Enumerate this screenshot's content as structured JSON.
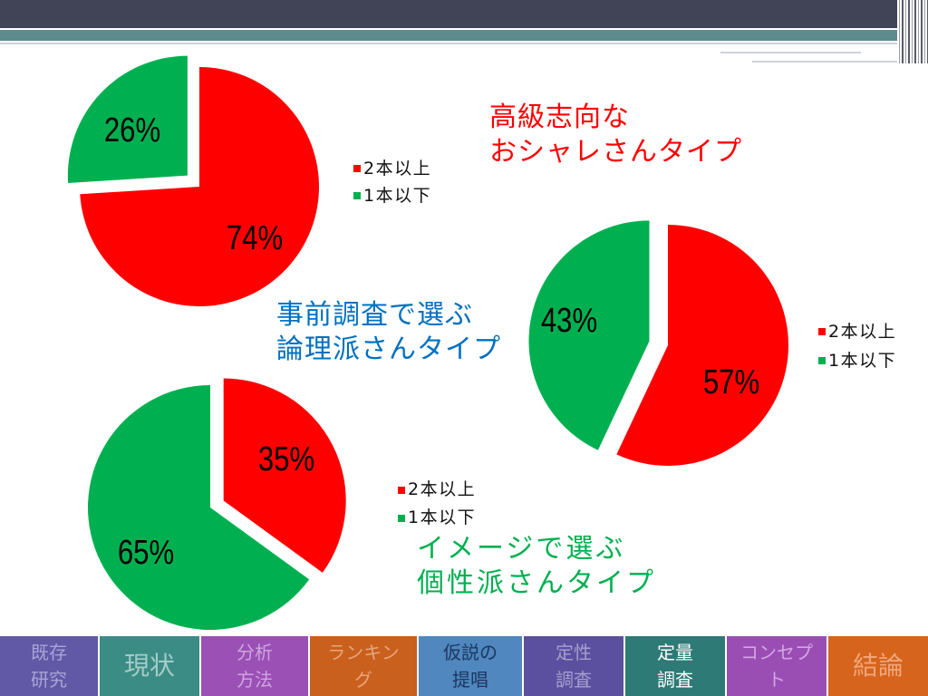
{
  "slide": {
    "captions": [
      {
        "lines": [
          "高級志向な",
          "おシャレさんタイプ"
        ],
        "color": "#ff0000"
      },
      {
        "lines": [
          "事前調査で選ぶ",
          "論理派さんタイプ"
        ],
        "color": "#0070c0"
      },
      {
        "lines": [
          "イメージで選ぶ",
          "個性派さんタイプ"
        ],
        "color": "#00b050"
      }
    ]
  },
  "chart_data": [
    {
      "type": "pie",
      "categories": [
        "2本以上",
        "1本以下"
      ],
      "values": [
        74,
        26
      ],
      "data_labels": [
        "74%",
        "26%"
      ],
      "colors": [
        "#ff0000",
        "#00b050"
      ],
      "legend_position": "right",
      "exploded_category": "1本以下"
    },
    {
      "type": "pie",
      "categories": [
        "2本以上",
        "1本以下"
      ],
      "values": [
        57,
        43
      ],
      "data_labels": [
        "57%",
        "43%"
      ],
      "colors": [
        "#ff0000",
        "#00b050"
      ],
      "legend_position": "right",
      "exploded_category": "1本以下"
    },
    {
      "type": "pie",
      "categories": [
        "2本以上",
        "1本以下"
      ],
      "values": [
        35,
        65
      ],
      "data_labels": [
        "35%",
        "65%"
      ],
      "colors": [
        "#ff0000",
        "#00b050"
      ],
      "legend_position": "right",
      "exploded_category": "2本以上"
    }
  ],
  "nav": {
    "tabs": [
      {
        "lines": [
          "既存",
          "研究"
        ],
        "bg": "#6158a6",
        "fg": "#a9a5d6"
      },
      {
        "lines": [
          "現状"
        ],
        "bg": "#3b8c85",
        "fg": "#a3ccc7"
      },
      {
        "lines": [
          "分析",
          "方法"
        ],
        "bg": "#9a50b5",
        "fg": "#cfa5df"
      },
      {
        "lines": [
          "ランキン",
          "グ"
        ],
        "bg": "#c9601d",
        "fg": "#e8a57c"
      },
      {
        "lines": [
          "仮説の",
          "提唱"
        ],
        "bg": "#4f87be",
        "fg": "#1b3760"
      },
      {
        "lines": [
          "定性",
          "調査"
        ],
        "bg": "#5b509f",
        "fg": "#a59fce"
      },
      {
        "lines": [
          "定量",
          "調査"
        ],
        "bg": "#2d7a76",
        "fg": "#ffffff"
      },
      {
        "lines": [
          "コンセプ",
          "ト"
        ],
        "bg": "#9a4eb4",
        "fg": "#d3a6e1"
      },
      {
        "lines": [
          "結論"
        ],
        "bg": "#d6641c",
        "fg": "#f0a67b"
      }
    ]
  }
}
